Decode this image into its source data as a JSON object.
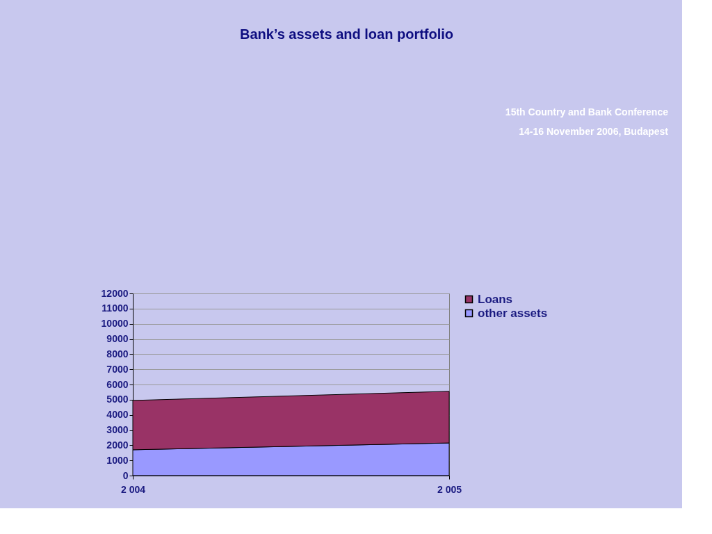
{
  "chart_data": {
    "type": "area",
    "title": "Bank’s assets and loan portfolio",
    "annotations": [
      "15th Country and Bank Conference",
      "14-16 November 2006, Budapest"
    ],
    "x": [
      2004,
      2005
    ],
    "xlim": [
      2004,
      2005
    ],
    "xticks": [
      {
        "value": 2004,
        "label": "2 004"
      },
      {
        "value": 2005,
        "label": "2 005"
      }
    ],
    "stacked": true,
    "series": [
      {
        "name": "other assets",
        "color": "#9999ff",
        "values": [
          1700,
          2150
        ]
      },
      {
        "name": "Loans",
        "color": "#993366",
        "values": [
          3250,
          3400
        ]
      }
    ],
    "ylim": [
      0,
      12000
    ],
    "yticks": [
      0,
      1000,
      2000,
      3000,
      4000,
      5000,
      6000,
      7000,
      8000,
      9000,
      10000,
      11000,
      12000
    ],
    "grid": "y",
    "legend": "right"
  }
}
